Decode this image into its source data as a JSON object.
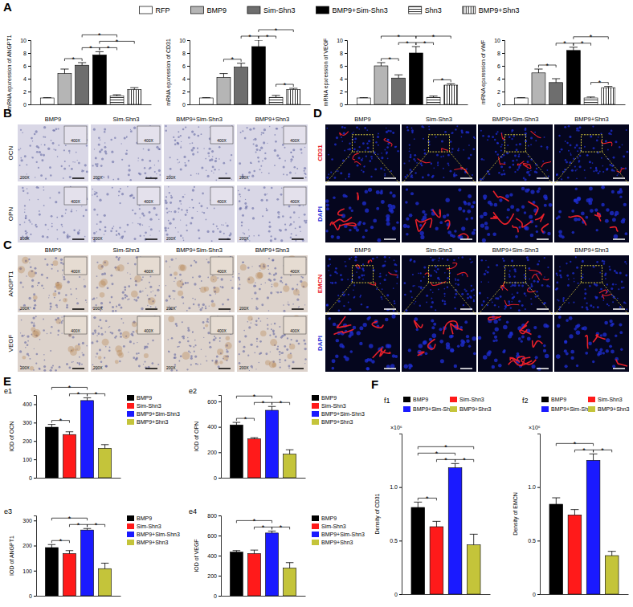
{
  "panel_labels": [
    "A",
    "B",
    "C",
    "D",
    "E",
    "F"
  ],
  "chart_data": [
    {
      "type": "bar",
      "categories": [
        null
      ],
      "y_label": "mRNA epxression of ANGPT1",
      "ylim": [
        0,
        10
      ],
      "yticks": [
        0,
        2,
        4,
        6,
        8,
        10
      ],
      "tick_labels": "y",
      "legend": "top",
      "series": [
        {
          "name": "RFP",
          "color": "#ffffff",
          "values": [
            1.0
          ],
          "errors": [
            0.05
          ]
        },
        {
          "name": "BMP9",
          "color": "#b5b5b5",
          "values": [
            4.8
          ],
          "errors": [
            0.7
          ]
        },
        {
          "name": "Sim-Shn3",
          "color": "#6e6e6e",
          "values": [
            6.1
          ],
          "errors": [
            0.4
          ]
        },
        {
          "name": "BMP9+Sim-Shn3",
          "color": "#000000",
          "values": [
            7.7
          ],
          "errors": [
            0.5
          ]
        },
        {
          "name": "Shn3",
          "color": "#ffffff",
          "line_style": "horizontal-hatch",
          "values": [
            1.3
          ],
          "errors": [
            0.2
          ]
        },
        {
          "name": "BMP9+Shn3",
          "color": "#ffffff",
          "line_style": "vertical-hatch",
          "values": [
            2.3
          ],
          "errors": [
            0.3
          ]
        }
      ],
      "annotations": [
        {
          "text": "*",
          "between": [
            1,
            2
          ]
        },
        {
          "text": "*",
          "between": [
            2,
            3
          ]
        },
        {
          "text": "*",
          "between": [
            3,
            4
          ]
        },
        {
          "text": "*",
          "between": [
            3,
            5
          ]
        },
        {
          "text": "*",
          "between": [
            2,
            4
          ]
        }
      ]
    },
    {
      "type": "bar",
      "categories": [
        null
      ],
      "y_label": "mRNA epxression of CD31",
      "ylim": [
        0,
        10
      ],
      "yticks": [
        0,
        2,
        4,
        6,
        8,
        10
      ],
      "tick_labels": "y",
      "series": [
        {
          "name": "RFP",
          "color": "#ffffff",
          "values": [
            1.0
          ],
          "errors": [
            0.05
          ]
        },
        {
          "name": "BMP9",
          "color": "#b5b5b5",
          "values": [
            4.2
          ],
          "errors": [
            0.6
          ]
        },
        {
          "name": "Sim-Shn3",
          "color": "#6e6e6e",
          "values": [
            5.8
          ],
          "errors": [
            0.6
          ]
        },
        {
          "name": "BMP9+Sim-Shn3",
          "color": "#000000",
          "values": [
            9.0
          ],
          "errors": [
            1.0
          ]
        },
        {
          "name": "Shn3",
          "color": "#ffffff",
          "line_style": "horizontal-hatch",
          "values": [
            1.1
          ],
          "errors": [
            0.3
          ]
        },
        {
          "name": "BMP9+Shn3",
          "color": "#ffffff",
          "line_style": "vertical-hatch",
          "values": [
            2.3
          ],
          "errors": [
            0.2
          ]
        }
      ],
      "annotations": [
        {
          "text": "*",
          "between": [
            1,
            2
          ]
        },
        {
          "text": "*",
          "between": [
            2,
            3
          ]
        },
        {
          "text": "*",
          "between": [
            3,
            4
          ]
        },
        {
          "text": "*",
          "between": [
            4,
            5
          ]
        },
        {
          "text": "*",
          "between": [
            3,
            5
          ]
        }
      ]
    },
    {
      "type": "bar",
      "categories": [
        null
      ],
      "y_label": "mRNA epxression of VEGF",
      "ylim": [
        0,
        10
      ],
      "yticks": [
        0,
        2,
        4,
        6,
        8,
        10
      ],
      "tick_labels": "y",
      "series": [
        {
          "name": "RFP",
          "color": "#ffffff",
          "values": [
            1.0
          ],
          "errors": [
            0.05
          ]
        },
        {
          "name": "BMP9",
          "color": "#b5b5b5",
          "values": [
            6.0
          ],
          "errors": [
            0.5
          ]
        },
        {
          "name": "Sim-Shn3",
          "color": "#6e6e6e",
          "values": [
            4.1
          ],
          "errors": [
            0.5
          ]
        },
        {
          "name": "BMP9+Sim-Shn3",
          "color": "#000000",
          "values": [
            8.0
          ],
          "errors": [
            1.0
          ]
        },
        {
          "name": "Shn3",
          "color": "#ffffff",
          "line_style": "horizontal-hatch",
          "values": [
            1.1
          ],
          "errors": [
            0.2
          ]
        },
        {
          "name": "BMP9+Shn3",
          "color": "#ffffff",
          "line_style": "vertical-hatch",
          "values": [
            3.0
          ],
          "errors": [
            0.2
          ]
        }
      ],
      "annotations": [
        {
          "text": "*",
          "between": [
            1,
            2
          ]
        },
        {
          "text": "*",
          "between": [
            2,
            3
          ]
        },
        {
          "text": "*",
          "between": [
            3,
            4
          ]
        },
        {
          "text": "*",
          "between": [
            4,
            5
          ]
        },
        {
          "text": "*",
          "between": [
            1,
            3
          ]
        },
        {
          "text": "*",
          "between": [
            3,
            5
          ]
        }
      ]
    },
    {
      "type": "bar",
      "categories": [
        null
      ],
      "y_label": "mRNA epxression of vWF",
      "ylim": [
        0,
        10
      ],
      "yticks": [
        0,
        2,
        4,
        6,
        8,
        10
      ],
      "tick_labels": "y",
      "series": [
        {
          "name": "RFP",
          "color": "#ffffff",
          "values": [
            1.0
          ],
          "errors": [
            0.05
          ]
        },
        {
          "name": "BMP9",
          "color": "#b5b5b5",
          "values": [
            4.9
          ],
          "errors": [
            0.6
          ]
        },
        {
          "name": "Sim-Shn3",
          "color": "#6e6e6e",
          "values": [
            3.4
          ],
          "errors": [
            0.6
          ]
        },
        {
          "name": "BMP9+Sim-Shn3",
          "color": "#000000",
          "values": [
            8.4
          ],
          "errors": [
            0.5
          ]
        },
        {
          "name": "Shn3",
          "color": "#ffffff",
          "line_style": "horizontal-hatch",
          "values": [
            1.0
          ],
          "errors": [
            0.15
          ]
        },
        {
          "name": "BMP9+Shn3",
          "color": "#ffffff",
          "line_style": "vertical-hatch",
          "values": [
            2.6
          ],
          "errors": [
            0.2
          ]
        }
      ],
      "annotations": [
        {
          "text": "*",
          "between": [
            1,
            2
          ]
        },
        {
          "text": "*",
          "between": [
            2,
            3
          ]
        },
        {
          "text": "*",
          "between": [
            3,
            4
          ]
        },
        {
          "text": "*",
          "between": [
            4,
            5
          ]
        },
        {
          "text": "*",
          "between": [
            3,
            5
          ]
        }
      ]
    },
    {
      "type": "bar",
      "title": "e1",
      "categories": [
        null
      ],
      "y_label": "IOD of OCN",
      "ylim": [
        0,
        450
      ],
      "yticks": [
        0,
        100,
        200,
        300,
        400
      ],
      "tick_labels": "y",
      "legend": "upper right",
      "series": [
        {
          "name": "BMP9",
          "color": "#000000",
          "values": [
            275
          ],
          "errors": [
            15
          ]
        },
        {
          "name": "Sim-Shn3",
          "color": "#ff1a1a",
          "values": [
            235
          ],
          "errors": [
            15
          ]
        },
        {
          "name": "BMP9+Sim-Shn3",
          "color": "#1a1aff",
          "values": [
            420
          ],
          "errors": [
            15
          ]
        },
        {
          "name": "BMP9+Shn3",
          "color": "#c4c43a",
          "values": [
            160
          ],
          "errors": [
            20
          ]
        }
      ],
      "annotations": [
        {
          "text": "*",
          "between": [
            0,
            1
          ]
        },
        {
          "text": "*",
          "between": [
            1,
            2
          ]
        },
        {
          "text": "*",
          "between": [
            2,
            3
          ]
        },
        {
          "text": "*",
          "between": [
            0,
            2
          ]
        }
      ]
    },
    {
      "type": "bar",
      "title": "e2",
      "categories": [
        null
      ],
      "y_label": "IOD of OPN",
      "ylim": [
        0,
        650
      ],
      "yticks": [
        0,
        200,
        400,
        600
      ],
      "tick_labels": "y",
      "legend": "upper right",
      "series": [
        {
          "name": "BMP9",
          "color": "#000000",
          "values": [
            415
          ],
          "errors": [
            20
          ]
        },
        {
          "name": "Sim-Shn3",
          "color": "#ff1a1a",
          "values": [
            305
          ],
          "errors": [
            10
          ]
        },
        {
          "name": "BMP9+Sim-Shn3",
          "color": "#1a1aff",
          "values": [
            530
          ],
          "errors": [
            30
          ]
        },
        {
          "name": "BMP9+Shn3",
          "color": "#c4c43a",
          "values": [
            185
          ],
          "errors": [
            35
          ]
        }
      ],
      "annotations": [
        {
          "text": "*",
          "between": [
            0,
            1
          ]
        },
        {
          "text": "*",
          "between": [
            1,
            2
          ]
        },
        {
          "text": "*",
          "between": [
            2,
            3
          ]
        },
        {
          "text": "*",
          "between": [
            0,
            2
          ]
        }
      ]
    },
    {
      "type": "bar",
      "title": "e3",
      "categories": [
        null
      ],
      "y_label": "IOD of ANGPT1",
      "ylim": [
        0,
        320
      ],
      "yticks": [
        0,
        100,
        200,
        300
      ],
      "tick_labels": "y",
      "legend": "upper right",
      "series": [
        {
          "name": "BMP9",
          "color": "#000000",
          "values": [
            192
          ],
          "errors": [
            12
          ]
        },
        {
          "name": "Sim-Shn3",
          "color": "#ff1a1a",
          "values": [
            168
          ],
          "errors": [
            12
          ]
        },
        {
          "name": "BMP9+Sim-Shn3",
          "color": "#1a1aff",
          "values": [
            262
          ],
          "errors": [
            6
          ]
        },
        {
          "name": "BMP9+Shn3",
          "color": "#c4c43a",
          "values": [
            108
          ],
          "errors": [
            22
          ]
        }
      ],
      "annotations": [
        {
          "text": "*",
          "between": [
            0,
            1
          ]
        },
        {
          "text": "*",
          "between": [
            1,
            2
          ]
        },
        {
          "text": "*",
          "between": [
            2,
            3
          ]
        },
        {
          "text": "*",
          "between": [
            0,
            2
          ]
        }
      ]
    },
    {
      "type": "bar",
      "title": "e4",
      "categories": [
        null
      ],
      "y_label": "IOD of VEGF",
      "ylim": [
        0,
        800
      ],
      "yticks": [
        0,
        200,
        400,
        600,
        800
      ],
      "tick_labels": "y",
      "legend": "upper right",
      "series": [
        {
          "name": "BMP9",
          "color": "#000000",
          "values": [
            435
          ],
          "errors": [
            15
          ]
        },
        {
          "name": "Sim-Shn3",
          "color": "#ff1a1a",
          "values": [
            420
          ],
          "errors": [
            35
          ]
        },
        {
          "name": "BMP9+Sim-Shn3",
          "color": "#1a1aff",
          "values": [
            625
          ],
          "errors": [
            20
          ]
        },
        {
          "name": "BMP9+Shn3",
          "color": "#c4c43a",
          "values": [
            275
          ],
          "errors": [
            55
          ]
        }
      ],
      "annotations": [
        {
          "text": "*",
          "between": [
            1,
            2
          ]
        },
        {
          "text": "*",
          "between": [
            2,
            3
          ]
        },
        {
          "text": "*",
          "between": [
            0,
            2
          ]
        }
      ]
    },
    {
      "type": "bar",
      "title": "f1",
      "categories": [
        null
      ],
      "y_label": "Density of CD31",
      "y_multiplier": "×10⁶",
      "ylim": [
        0,
        1.5
      ],
      "yticks": [
        0,
        0.5,
        {
          "value": 1,
          "label": "1.0"
        }
      ],
      "tick_labels": "y",
      "legend": "upper left",
      "series": [
        {
          "name": "BMP9",
          "color": "#000000",
          "values": [
            0.81
          ],
          "errors": [
            0.05
          ]
        },
        {
          "name": "Sim-Shn3",
          "color": "#ff1a1a",
          "values": [
            0.63
          ],
          "errors": [
            0.05
          ]
        },
        {
          "name": "BMP9+Sim-Shn3",
          "color": "#1a1aff",
          "values": [
            1.18
          ],
          "errors": [
            0.04
          ]
        },
        {
          "name": "BMP9+Shn3",
          "color": "#c4c43a",
          "values": [
            0.46
          ],
          "errors": [
            0.1
          ]
        }
      ],
      "annotations": [
        {
          "text": "*",
          "between": [
            0,
            1
          ]
        },
        {
          "text": "*",
          "between": [
            1,
            2
          ]
        },
        {
          "text": "*",
          "between": [
            2,
            3
          ]
        },
        {
          "text": "*",
          "between": [
            0,
            2
          ]
        },
        {
          "text": "*",
          "between": [
            0,
            3
          ]
        }
      ]
    },
    {
      "type": "bar",
      "title": "f2",
      "categories": [
        null
      ],
      "y_label": "Density of EMCN",
      "y_multiplier": "×10⁶",
      "ylim": [
        0,
        1.5
      ],
      "yticks": [
        0,
        0.5,
        {
          "value": 1,
          "label": "1.0"
        }
      ],
      "tick_labels": "y",
      "legend": "upper left",
      "series": [
        {
          "name": "BMP9",
          "color": "#000000",
          "values": [
            0.84
          ],
          "errors": [
            0.06
          ]
        },
        {
          "name": "Sim-Shn3",
          "color": "#ff1a1a",
          "values": [
            0.74
          ],
          "errors": [
            0.05
          ]
        },
        {
          "name": "BMP9+Sim-Shn3",
          "color": "#1a1aff",
          "values": [
            1.25
          ],
          "errors": [
            0.06
          ]
        },
        {
          "name": "BMP9+Shn3",
          "color": "#c4c43a",
          "values": [
            0.36
          ],
          "errors": [
            0.04
          ]
        }
      ],
      "annotations": [
        {
          "text": "*",
          "between": [
            1,
            2
          ]
        },
        {
          "text": "*",
          "between": [
            2,
            3
          ]
        },
        {
          "text": "*",
          "between": [
            0,
            2
          ]
        }
      ]
    }
  ],
  "image_panels": {
    "B": {
      "columns": [
        "BMP9",
        "Sim-Shn3",
        "BMP9+Sim-Shn3",
        "BMP9+Shn3"
      ],
      "rows": [
        "OCN",
        "OPN"
      ],
      "magnification": "200X",
      "inset_magnification": "400X"
    },
    "C": {
      "columns": [
        "BMP9",
        "Sim-Shn3",
        "BMP9+Sim-Shn3",
        "BMP9+Shn3"
      ],
      "rows": [
        "ANGPT1",
        "VEGF"
      ],
      "magnification": "200X",
      "inset_magnification": "400X"
    },
    "D": {
      "columns": [
        "BMP9",
        "Sim-Shn3",
        "BMP9+Sim-Shn3",
        "BMP9+Shn3"
      ],
      "rows": [
        {
          "label": "CD31",
          "color": "#e8202a"
        },
        {
          "label": "DAPI",
          "color": "#1f2fd8"
        },
        {
          "label": "EMCN",
          "color": "#e8202a"
        },
        {
          "label": "DAPI",
          "color": "#1f2fd8"
        }
      ]
    }
  }
}
